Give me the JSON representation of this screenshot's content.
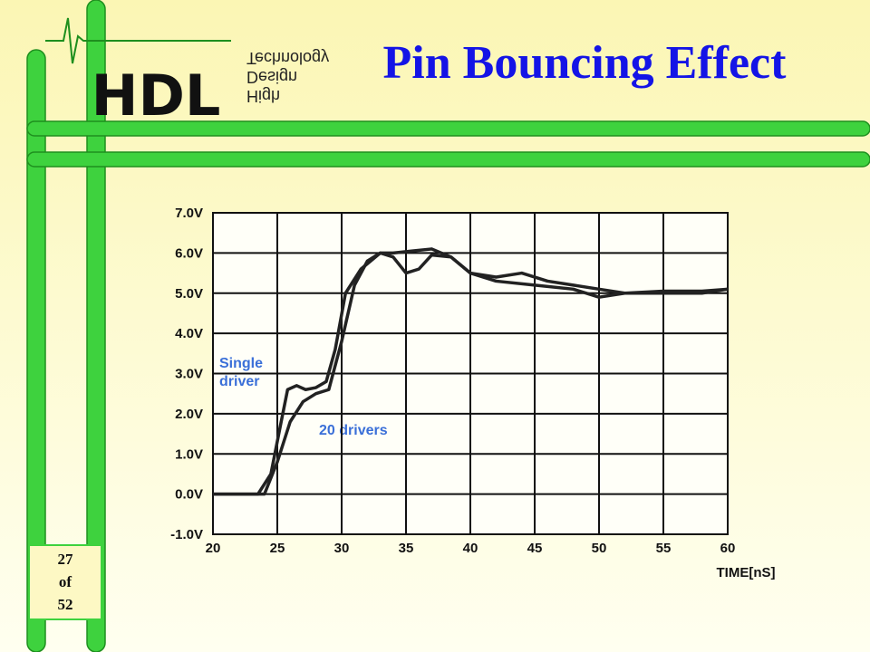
{
  "slide": {
    "title": "Pin Bouncing Effect",
    "logo": {
      "mark": "HDL",
      "line1": "High",
      "line2": "Design",
      "line3": "Technology"
    },
    "page": {
      "current": "27",
      "of": "of",
      "total": "52"
    }
  },
  "chart_data": {
    "type": "line",
    "x_label": "TIME[nS]",
    "annotations": [
      "Single driver",
      "20 drivers"
    ],
    "xlim": [
      20,
      60
    ],
    "xticks": [
      20,
      25,
      30,
      35,
      40,
      45,
      50,
      55,
      60
    ],
    "ylim": [
      -1,
      7
    ],
    "yticks": [
      {
        "value": -1,
        "label": "-1.0V"
      },
      {
        "value": 0,
        "label": "0.0V"
      },
      {
        "value": 1,
        "label": "1.0V"
      },
      {
        "value": 2,
        "label": "2.0V"
      },
      {
        "value": 3,
        "label": "3.0V"
      },
      {
        "value": 4,
        "label": "4.0V"
      },
      {
        "value": 5,
        "label": "5.0V"
      },
      {
        "value": 6,
        "label": "6.0V"
      },
      {
        "value": 7,
        "label": "7.0V"
      }
    ],
    "grid": true,
    "series": [
      {
        "name": "Single driver",
        "color": "#222222",
        "x": [
          20,
          23.5,
          24.5,
          25.3,
          25.8,
          26.5,
          27.2,
          28,
          28.8,
          29.5,
          30.3,
          31.5,
          33,
          34,
          35,
          36,
          37,
          38.5,
          40,
          42,
          44,
          46,
          48,
          50,
          52,
          55,
          58,
          60
        ],
        "values": [
          0,
          0,
          0.5,
          1.8,
          2.6,
          2.7,
          2.6,
          2.65,
          2.8,
          3.6,
          5.0,
          5.6,
          6.0,
          5.9,
          5.5,
          5.6,
          5.95,
          5.9,
          5.5,
          5.4,
          5.5,
          5.3,
          5.2,
          5.1,
          5.0,
          5.05,
          5.05,
          5.1
        ]
      },
      {
        "name": "20 drivers",
        "color": "#222222",
        "x": [
          20,
          24,
          25,
          26,
          27,
          28,
          29,
          30,
          31,
          32,
          33,
          34,
          35.5,
          37,
          38.5,
          40,
          42,
          45,
          48,
          50,
          52,
          55,
          58,
          60
        ],
        "values": [
          0,
          0,
          0.8,
          1.8,
          2.3,
          2.5,
          2.6,
          3.8,
          5.2,
          5.8,
          6.0,
          6.0,
          6.05,
          6.1,
          5.9,
          5.5,
          5.3,
          5.2,
          5.1,
          4.9,
          5.0,
          5.0,
          5.0,
          5.1
        ]
      }
    ]
  }
}
